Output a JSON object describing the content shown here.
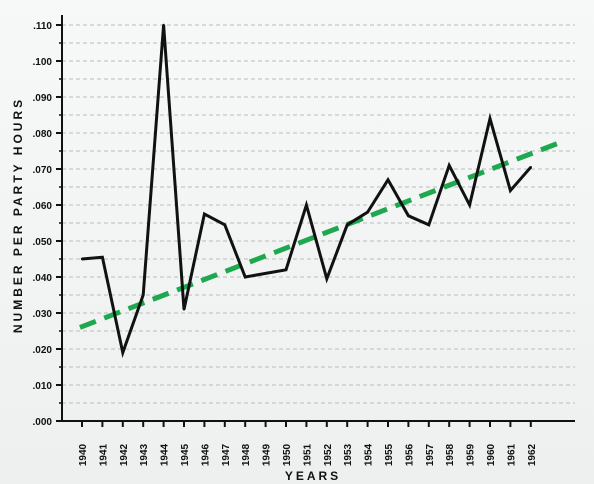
{
  "chart_data": {
    "type": "line",
    "xlabel": "YEARS",
    "ylabel": "NUMBER PER PARTY HOURS",
    "ylim": [
      0,
      0.11
    ],
    "y_ticks": [
      ".000",
      ".010",
      ".020",
      ".030",
      ".040",
      ".050",
      ".060",
      ".070",
      ".080",
      ".090",
      ".100",
      ".110"
    ],
    "categories": [
      "1940",
      "1941",
      "1942",
      "1943",
      "1944",
      "1945",
      "1946",
      "1947",
      "1948",
      "1949",
      "1950",
      "1951",
      "1952",
      "1953",
      "1954",
      "1955",
      "1956",
      "1957",
      "1958",
      "1959",
      "1960",
      "1961",
      "1962"
    ],
    "grid": true,
    "series": [
      {
        "values": [
          0.045,
          0.0455,
          0.019,
          0.035,
          0.11,
          0.031,
          0.0575,
          0.0545,
          0.04,
          0.041,
          0.042,
          0.06,
          0.0395,
          0.0545,
          0.058,
          0.067,
          0.057,
          0.0545,
          0.071,
          0.06,
          0.084,
          0.064,
          0.0705
        ],
        "color": "#111111",
        "style": "solid"
      },
      {
        "trend_start": [
          1939.9,
          0.026
        ],
        "trend_end": [
          1963.5,
          0.0775
        ],
        "color": "#1fa84f",
        "style": "dashed"
      }
    ]
  }
}
